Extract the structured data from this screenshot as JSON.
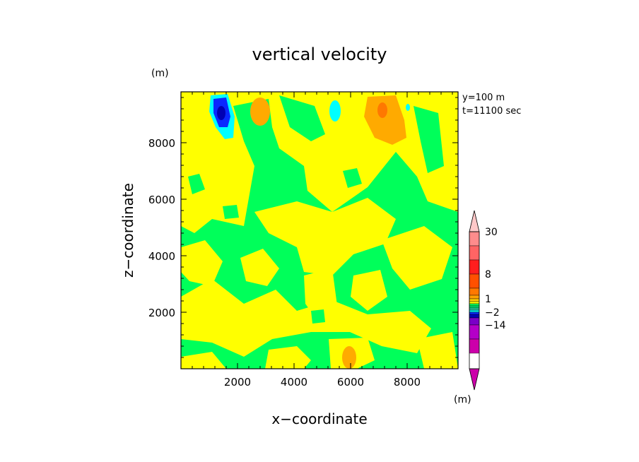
{
  "chart_data": {
    "type": "heatmap",
    "title": "vertical velocity",
    "xlabel": "x−coordinate",
    "ylabel": "z−coordinate",
    "x_unit": "(m)",
    "y_unit": "(m)",
    "info_lines": [
      "y=100  m",
      "t=11100 sec"
    ],
    "xlim": [
      0,
      9800
    ],
    "ylim": [
      0,
      9800
    ],
    "x_ticks": [
      2000,
      4000,
      6000,
      8000
    ],
    "y_ticks": [
      2000,
      4000,
      6000,
      8000
    ],
    "colorbar": {
      "unit": "(m)",
      "labels": [
        {
          "text": "30",
          "value": 30
        },
        {
          "text": "8",
          "value": 8
        },
        {
          "text": "1",
          "value": 1
        },
        {
          "text": "−2",
          "value": -2
        },
        {
          "text": "−14",
          "value": -14
        }
      ],
      "bins": [
        {
          "from": -999,
          "to": -30,
          "color": "#cc00aa"
        },
        {
          "from": -30,
          "to": -22,
          "color": "#cc00aa"
        },
        {
          "from": -22,
          "to": -14,
          "color": "#b400c8"
        },
        {
          "from": -14,
          "to": -8,
          "color": "#7a00c8"
        },
        {
          "from": -8,
          "to": -4,
          "color": "#0000b4"
        },
        {
          "from": -4,
          "to": -2,
          "color": "#0a28ff"
        },
        {
          "from": -2,
          "to": -1.5,
          "color": "#00e6e6"
        },
        {
          "from": -1.5,
          "to": -1,
          "color": "#28c8a0"
        },
        {
          "from": -1,
          "to": -0.5,
          "color": "#00dc6e"
        },
        {
          "from": -0.5,
          "to": 0,
          "color": "#00ff5a"
        },
        {
          "from": 0,
          "to": 0.5,
          "color": "#ffff00"
        },
        {
          "from": 0.5,
          "to": 1,
          "color": "#ffcc00"
        },
        {
          "from": 1,
          "to": 2,
          "color": "#ffa000"
        },
        {
          "from": 2,
          "to": 4,
          "color": "#ff7800"
        },
        {
          "from": 4,
          "to": 8,
          "color": "#ff5000"
        },
        {
          "from": 8,
          "to": 14,
          "color": "#ff1e1e"
        },
        {
          "from": 14,
          "to": 22,
          "color": "#ff6464"
        },
        {
          "from": 22,
          "to": 30,
          "color": "#ff8c8c"
        },
        {
          "from": 30,
          "to": 999,
          "color": "#ffc8c8"
        }
      ]
    },
    "field_colors": {
      "negative": "#00ff5a",
      "positive": "#ffff00",
      "orange": "#ffaa00",
      "dark_orange": "#ff7800",
      "cyan": "#00ffff",
      "blue": "#0a28ff",
      "dark_blue": "#0000b4"
    },
    "features": [
      {
        "kind": "downdraft",
        "x": 1500,
        "z": 9200,
        "min_value": -4
      },
      {
        "kind": "downdraft",
        "x": 5350,
        "z": 9300,
        "min_value": -2
      },
      {
        "kind": "updraft",
        "x": 7200,
        "z": 9100,
        "max_value": 4
      },
      {
        "kind": "updraft",
        "x": 2800,
        "z": 9100,
        "max_value": 1
      },
      {
        "kind": "updraft",
        "x": 6000,
        "z": 400,
        "max_value": 1
      }
    ]
  }
}
